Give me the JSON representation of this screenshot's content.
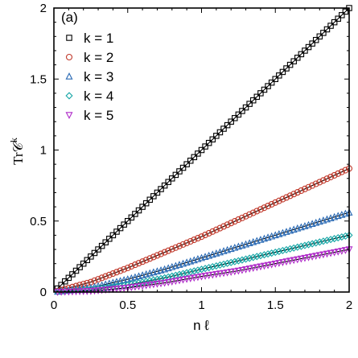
{
  "chart_data": {
    "type": "line",
    "panel_label": "(a)",
    "xlabel": "n ℓ",
    "ylabel": "Tr𝒞",
    "ylabel_superscript": "k",
    "xlim": [
      0,
      2
    ],
    "ylim": [
      0,
      2
    ],
    "x_ticks": [
      0,
      0.5,
      1,
      1.5,
      2
    ],
    "x_tick_labels": [
      "0",
      "0.5",
      "1",
      "1.5",
      "2"
    ],
    "y_ticks": [
      0,
      0.5,
      1,
      1.5,
      2
    ],
    "y_tick_labels": [
      "0",
      "0.5",
      "1",
      "1.5",
      "2"
    ],
    "grid": false,
    "legend_position": "top-left",
    "x": [
      0,
      0.25,
      0.5,
      0.75,
      1.0,
      1.25,
      1.5,
      1.75,
      2.0
    ],
    "series": [
      {
        "name": "k = 1",
        "color": "#000000",
        "marker": "square",
        "values": [
          0,
          0.25,
          0.5,
          0.75,
          1.0,
          1.25,
          1.5,
          1.75,
          2.0
        ]
      },
      {
        "name": "k = 2",
        "color": "#c0392b",
        "marker": "circle",
        "values": [
          0,
          0.07,
          0.17,
          0.28,
          0.39,
          0.51,
          0.63,
          0.75,
          0.87
        ]
      },
      {
        "name": "k = 3",
        "color": "#2a6ab4",
        "marker": "triangle-up",
        "values": [
          0,
          0.03,
          0.09,
          0.16,
          0.24,
          0.32,
          0.4,
          0.48,
          0.56
        ]
      },
      {
        "name": "k = 4",
        "color": "#17a6a6",
        "marker": "diamond",
        "values": [
          0,
          0.015,
          0.05,
          0.1,
          0.16,
          0.22,
          0.28,
          0.34,
          0.4
        ]
      },
      {
        "name": "k = 5",
        "color": "#b02dc9",
        "marker": "triangle-down",
        "values": [
          0,
          0.007,
          0.03,
          0.065,
          0.11,
          0.15,
          0.2,
          0.25,
          0.3
        ]
      }
    ]
  }
}
